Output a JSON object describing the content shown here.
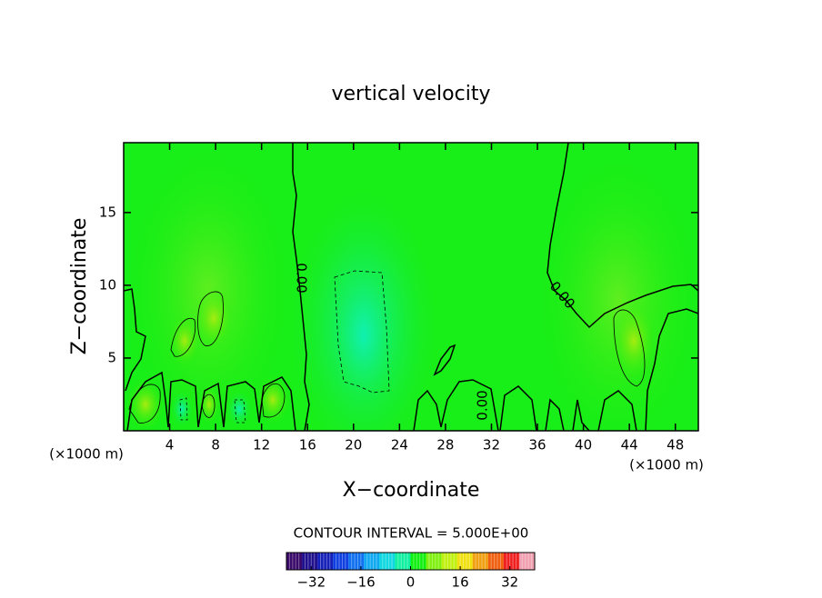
{
  "chart_data": {
    "type": "contour",
    "title": "vertical velocity",
    "x_label": "X−coordinate",
    "y_label": "Z−coordinate",
    "x_unit_labels": [
      "(×1000 m)",
      "(×1000 m)"
    ],
    "xlim": [
      0,
      50
    ],
    "xticks": [
      4,
      8,
      12,
      16,
      20,
      24,
      28,
      32,
      36,
      40,
      44,
      48
    ],
    "ylim": [
      0,
      19.8
    ],
    "yticks": [
      5,
      10,
      15
    ],
    "contour_labels": [
      "0.00",
      "0.00",
      "0.00"
    ],
    "contour_interval_text": "CONTOUR INTERVAL = 5.000E+00",
    "colorbar": {
      "levels": [
        -40,
        -35,
        -30,
        -25,
        -20,
        -15,
        -10,
        -5,
        0,
        5,
        10,
        15,
        20,
        25,
        30,
        35,
        40
      ],
      "colors": [
        "#3a0a6a",
        "#20108e",
        "#1420b8",
        "#1040e0",
        "#1070f0",
        "#10a8f0",
        "#10d8e0",
        "#10f0a0",
        "#10f010",
        "#80f010",
        "#c0f010",
        "#f0e010",
        "#f0a010",
        "#f06010",
        "#f02020",
        "#f0a0b0"
      ],
      "ticks": [
        {
          "value": -32,
          "label": "−32"
        },
        {
          "value": -16,
          "label": "−16"
        },
        0,
        16,
        32
      ]
    }
  }
}
